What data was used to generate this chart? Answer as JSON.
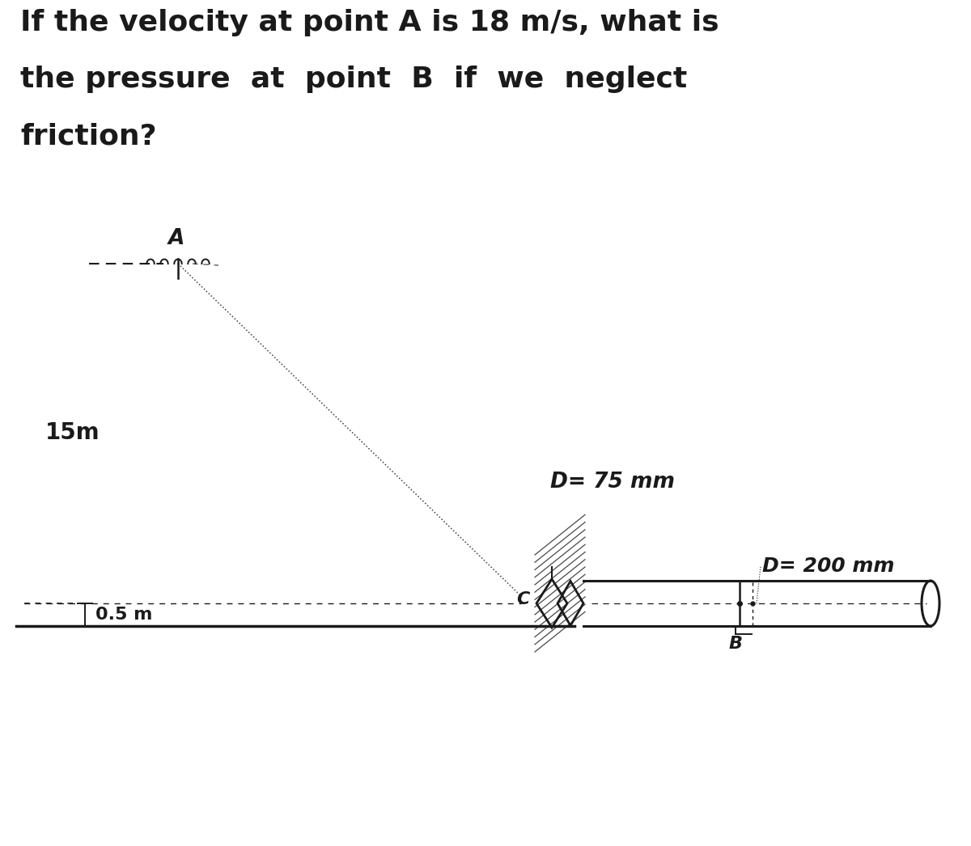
{
  "bg_color": "#ffffff",
  "title_line1": "If the velocity at point A is 18 m/s, what is",
  "title_line2": "the pressure  at  point  B  if  we  neglect",
  "title_line3": "friction?",
  "title_fontsize": 26,
  "label_15m": "15m",
  "label_05m": "0.5 m",
  "label_D75": "D= 75 mm",
  "label_D200": "D= 200 mm",
  "label_A": "A",
  "label_B": "B",
  "label_C": "C",
  "text_color": "#1a1a1a"
}
